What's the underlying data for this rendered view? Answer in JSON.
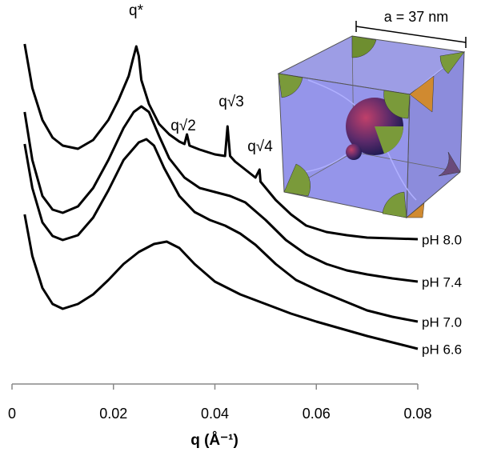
{
  "chart_data": {
    "type": "line",
    "x_label": "q (Å⁻¹)",
    "xlim": [
      0,
      0.08
    ],
    "xticks": [
      0,
      0.02,
      0.04,
      0.06,
      0.08
    ],
    "ylim": [
      0,
      480
    ],
    "annotations": [
      "q*",
      "q√2",
      "q√3",
      "q√4"
    ],
    "inset_label": "a = 37 nm",
    "series": [
      {
        "name": "pH 8.0",
        "color": "#000000",
        "x": [
          0.0025,
          0.004,
          0.006,
          0.008,
          0.01,
          0.013,
          0.016,
          0.019,
          0.021,
          0.023,
          0.0238,
          0.0245,
          0.025,
          0.0255,
          0.027,
          0.029,
          0.031,
          0.033,
          0.034,
          0.0345,
          0.035,
          0.037,
          0.04,
          0.042,
          0.0425,
          0.043,
          0.044,
          0.046,
          0.048,
          0.0488,
          0.049,
          0.052,
          0.055,
          0.058,
          0.062,
          0.066,
          0.07,
          0.075,
          0.08
        ],
        "values": [
          425,
          370,
          330,
          308,
          298,
          294,
          305,
          330,
          355,
          385,
          405,
          422,
          410,
          380,
          350,
          325,
          312,
          303,
          300,
          312,
          298,
          293,
          287,
          285,
          322,
          285,
          278,
          268,
          258,
          268,
          253,
          230,
          212,
          198,
          190,
          186,
          183,
          182,
          181
        ]
      },
      {
        "name": "pH 7.4",
        "color": "#000000",
        "x": [
          0.0025,
          0.004,
          0.006,
          0.008,
          0.01,
          0.013,
          0.016,
          0.019,
          0.022,
          0.024,
          0.0255,
          0.027,
          0.029,
          0.031,
          0.034,
          0.037,
          0.04,
          0.043,
          0.046,
          0.05,
          0.054,
          0.058,
          0.062,
          0.066,
          0.07,
          0.075,
          0.08
        ],
        "values": [
          340,
          280,
          235,
          218,
          214,
          222,
          245,
          280,
          320,
          340,
          347,
          340,
          310,
          282,
          258,
          245,
          240,
          235,
          227,
          205,
          180,
          162,
          150,
          142,
          137,
          132,
          128
        ]
      },
      {
        "name": "pH 7.0",
        "color": "#000000",
        "x": [
          0.0025,
          0.004,
          0.006,
          0.008,
          0.01,
          0.013,
          0.016,
          0.019,
          0.022,
          0.025,
          0.0265,
          0.028,
          0.03,
          0.033,
          0.036,
          0.039,
          0.042,
          0.045,
          0.048,
          0.052,
          0.056,
          0.06,
          0.065,
          0.07,
          0.075,
          0.08
        ],
        "values": [
          300,
          245,
          202,
          185,
          180,
          186,
          208,
          242,
          280,
          302,
          306,
          298,
          270,
          235,
          215,
          205,
          198,
          188,
          174,
          150,
          130,
          118,
          105,
          92,
          84,
          78
        ]
      },
      {
        "name": "pH 6.6",
        "color": "#000000",
        "x": [
          0.0025,
          0.004,
          0.006,
          0.008,
          0.01,
          0.013,
          0.016,
          0.019,
          0.022,
          0.025,
          0.028,
          0.0305,
          0.033,
          0.036,
          0.04,
          0.045,
          0.05,
          0.055,
          0.06,
          0.065,
          0.07,
          0.075,
          0.08
        ],
        "values": [
          212,
          160,
          120,
          100,
          94,
          100,
          112,
          130,
          150,
          165,
          175,
          178,
          170,
          150,
          128,
          112,
          100,
          88,
          78,
          69,
          60,
          52,
          44
        ]
      }
    ]
  }
}
